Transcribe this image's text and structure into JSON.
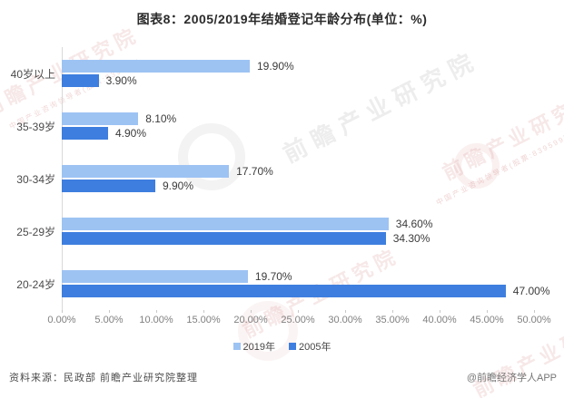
{
  "title": "图表8：2005/2019年结婚登记年龄分布(单位：%)",
  "chart_data": {
    "type": "bar",
    "orientation": "horizontal",
    "title": "图表8：2005/2019年结婚登记年龄分布(单位：%)",
    "categories": [
      "40岁以上",
      "35-39岁",
      "30-34岁",
      "25-29岁",
      "20-24岁"
    ],
    "series": [
      {
        "name": "2019年",
        "color": "#9DC3F3",
        "values": [
          19.9,
          8.1,
          17.7,
          34.6,
          19.7
        ],
        "labels": [
          "19.90%",
          "8.10%",
          "17.70%",
          "34.60%",
          "19.70%"
        ]
      },
      {
        "name": "2005年",
        "color": "#3E7EDF",
        "values": [
          3.9,
          4.9,
          9.9,
          34.3,
          47.0
        ],
        "labels": [
          "3.90%",
          "4.90%",
          "9.90%",
          "34.30%",
          "47.00%"
        ]
      }
    ],
    "xlabel": "",
    "ylabel": "",
    "xlim": [
      0,
      50
    ],
    "x_ticks": [
      "0.00%",
      "5.00%",
      "10.00%",
      "15.00%",
      "20.00%",
      "25.00%",
      "30.00%",
      "35.00%",
      "40.00%",
      "45.00%",
      "50.00%"
    ],
    "grid": false,
    "legend_position": "bottom",
    "value_labels_shown": true
  },
  "footer": {
    "source": "资料来源：民政部 前瞻产业研究院整理",
    "credit": "@前瞻经济学人APP"
  },
  "watermark": {
    "text": "前瞻产业研究院",
    "subtext": "中国产业咨询领导者(股票:839599)"
  }
}
